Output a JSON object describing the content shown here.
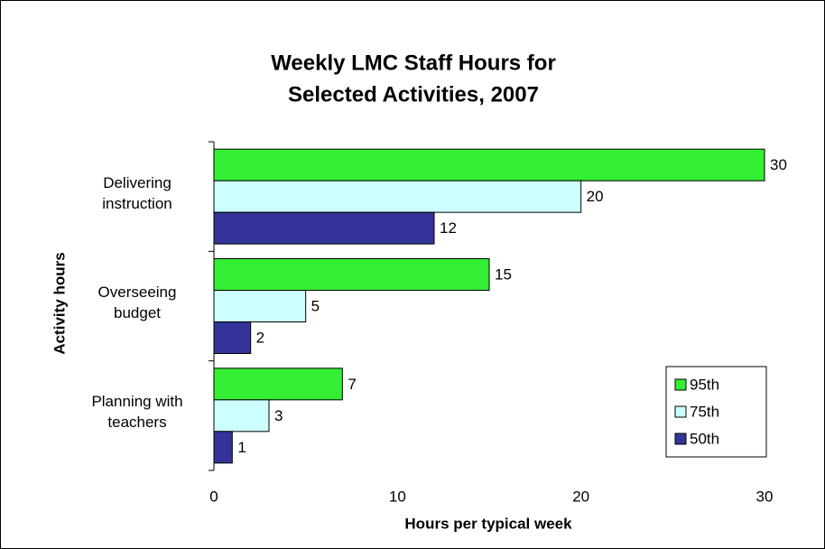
{
  "chart_data": {
    "type": "bar",
    "orientation": "horizontal",
    "title": [
      "Weekly LMC Staff Hours for",
      "Selected Activities, 2007"
    ],
    "x_label": "Hours per typical week",
    "y_label": "Activity hours",
    "categories": [
      "Delivering instruction",
      "Overseeing budget",
      "Planning with teachers"
    ],
    "series": [
      {
        "name": "95th",
        "color": "#33ee33",
        "values": [
          30,
          15,
          7
        ]
      },
      {
        "name": "75th",
        "color": "#ccffff",
        "values": [
          20,
          5,
          3
        ]
      },
      {
        "name": "50th",
        "color": "#333399",
        "values": [
          12,
          2,
          1
        ]
      }
    ],
    "xlim": [
      0,
      30
    ],
    "xticks": [
      0,
      10,
      20,
      30
    ],
    "legend": "lower right"
  }
}
